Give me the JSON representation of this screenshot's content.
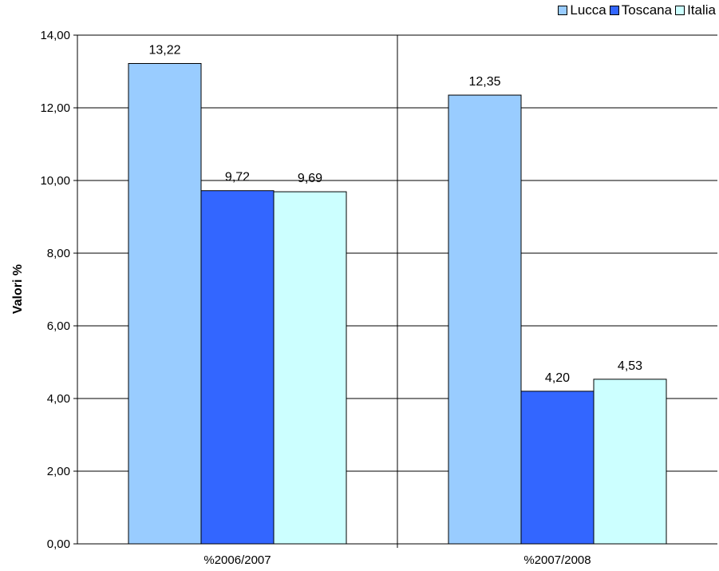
{
  "chart_data": {
    "type": "bar",
    "categories": [
      "%2006/2007",
      "%2007/2008"
    ],
    "series": [
      {
        "name": "Lucca",
        "color": "#99ccff",
        "values": [
          13.22,
          12.35
        ],
        "labels": [
          "13,22",
          "12,35"
        ]
      },
      {
        "name": "Toscana",
        "color": "#3366ff",
        "values": [
          9.72,
          4.2
        ],
        "labels": [
          "9,72",
          "4,20"
        ]
      },
      {
        "name": "Italia",
        "color": "#ccffff",
        "values": [
          9.69,
          4.53
        ],
        "labels": [
          "9,69",
          "4,53"
        ]
      }
    ],
    "ylabel": "Valori %",
    "xlabel": "",
    "ylim": [
      0,
      14
    ],
    "y_ticks": [
      0,
      2,
      4,
      6,
      8,
      10,
      12,
      14
    ],
    "y_tick_labels": [
      "0,00",
      "2,00",
      "4,00",
      "6,00",
      "8,00",
      "10,00",
      "12,00",
      "14,00"
    ],
    "grid": true,
    "legend_position": "top-right"
  }
}
